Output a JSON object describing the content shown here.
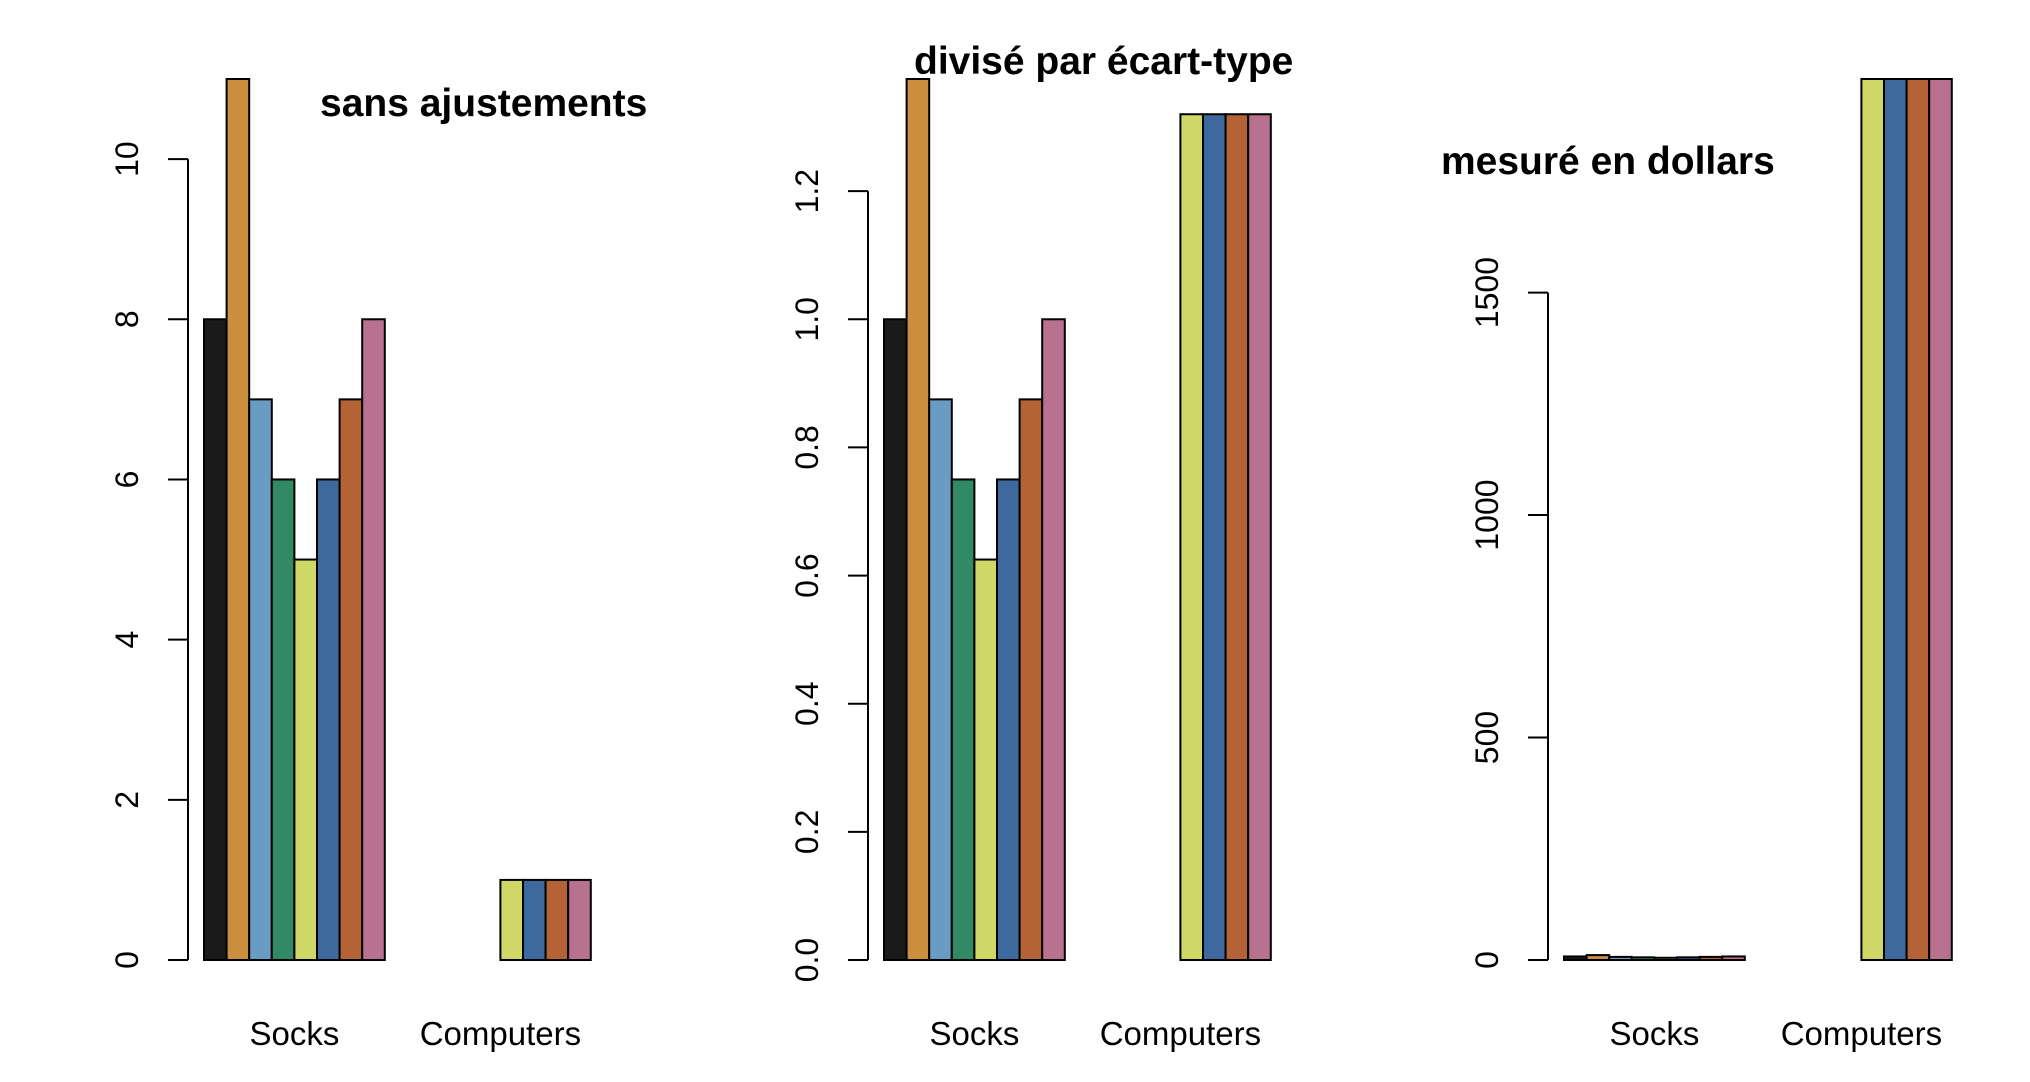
{
  "chart_data": [
    {
      "type": "bar",
      "title": "sans ajustements",
      "categories": [
        "Socks",
        "Computers"
      ],
      "series_colors": [
        "#1a1a1a",
        "#c98f3f",
        "#6a9bc3",
        "#318a64",
        "#cfd766",
        "#3d699f",
        "#b46337",
        "#b8718f"
      ],
      "values": [
        [
          8,
          11,
          7,
          6,
          5,
          6,
          7,
          8
        ],
        [
          0,
          0,
          0,
          0,
          1,
          1,
          1,
          1
        ]
      ],
      "ylim": [
        0,
        11
      ],
      "yticks": [
        0,
        2,
        4,
        6,
        8,
        10
      ],
      "ytick_labels": [
        "0",
        "2",
        "4",
        "6",
        "8",
        "10"
      ],
      "grid": false
    },
    {
      "type": "bar",
      "title": "divisé par écart-type",
      "categories": [
        "Socks",
        "Computers"
      ],
      "series_colors": [
        "#1a1a1a",
        "#c98f3f",
        "#6a9bc3",
        "#318a64",
        "#cfd766",
        "#3d699f",
        "#b46337",
        "#b8718f"
      ],
      "values": [
        [
          1.0,
          1.375,
          0.875,
          0.75,
          0.625,
          0.75,
          0.875,
          1.0
        ],
        [
          0,
          0,
          0,
          0,
          1.32,
          1.32,
          1.32,
          1.32
        ]
      ],
      "ylim": [
        0,
        1.375
      ],
      "yticks": [
        0,
        0.2,
        0.4,
        0.6,
        0.8,
        1.0,
        1.2
      ],
      "ytick_labels": [
        "0.0",
        "0.2",
        "0.4",
        "0.6",
        "0.8",
        "1.0",
        "1.2"
      ],
      "grid": false
    },
    {
      "type": "bar",
      "title": "mesuré en dollars",
      "categories": [
        "Socks",
        "Computers"
      ],
      "series_colors": [
        "#1a1a1a",
        "#c98f3f",
        "#6a9bc3",
        "#318a64",
        "#cfd766",
        "#3d699f",
        "#b46337",
        "#b8718f"
      ],
      "values": [
        [
          8,
          11,
          7,
          6,
          5,
          6,
          7,
          8
        ],
        [
          0,
          0,
          0,
          0,
          1980,
          1980,
          1980,
          1980
        ]
      ],
      "ylim": [
        0,
        1980
      ],
      "yticks": [
        0,
        500,
        1000,
        1500
      ],
      "ytick_labels": [
        "0",
        "500",
        "1000",
        "1500"
      ],
      "grid": false
    }
  ]
}
